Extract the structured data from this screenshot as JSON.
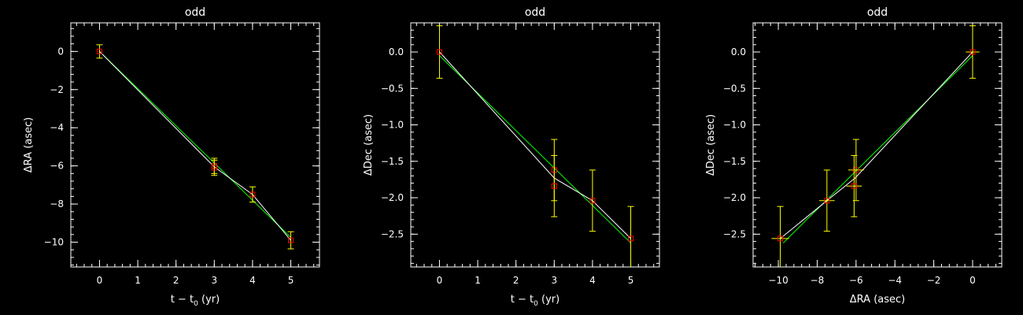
{
  "chart_data": [
    {
      "type": "scatter",
      "title": "odd",
      "xlabel": "t − t",
      "xlabel_sub": "0",
      "xlabel_tail": " (yr)",
      "ylabel": "ΔRA (asec)",
      "xlim": [
        -0.75,
        5.75
      ],
      "ylim": [
        -11.3,
        1.5
      ],
      "xticks": [
        0,
        1,
        2,
        3,
        4,
        5
      ],
      "yticks": [
        0,
        -2,
        -4,
        -6,
        -8,
        -10
      ],
      "ytick_labels": [
        "0",
        "−2",
        "−4",
        "−6",
        "−8",
        "−10"
      ],
      "points": [
        {
          "x": 0,
          "y": 0.0,
          "yerr": 0.35
        },
        {
          "x": 3,
          "y": -6.0,
          "yerr": 0.4
        },
        {
          "x": 3,
          "y": -6.1,
          "yerr": 0.4
        },
        {
          "x": 4,
          "y": -7.5,
          "yerr": 0.4
        },
        {
          "x": 5,
          "y": -9.9,
          "yerr": 0.45
        }
      ],
      "white_line": [
        [
          0,
          0.0
        ],
        [
          3,
          -6.05
        ],
        [
          4,
          -7.5
        ],
        [
          5,
          -9.9
        ]
      ],
      "fit_line": [
        [
          0,
          0.0
        ],
        [
          5,
          -9.75
        ]
      ]
    },
    {
      "type": "scatter",
      "title": "odd",
      "xlabel": "t − t",
      "xlabel_sub": "0",
      "xlabel_tail": " (yr)",
      "ylabel": "ΔDec (asec)",
      "xlim": [
        -0.75,
        5.75
      ],
      "ylim": [
        -2.95,
        0.4
      ],
      "xticks": [
        0,
        1,
        2,
        3,
        4,
        5
      ],
      "yticks": [
        0.0,
        -0.5,
        -1.0,
        -1.5,
        -2.0,
        -2.5
      ],
      "ytick_labels": [
        "0.0",
        "−0.5",
        "−1.0",
        "−1.5",
        "−2.0",
        "−2.5"
      ],
      "points": [
        {
          "x": 0,
          "y": 0.0,
          "yerr": 0.36
        },
        {
          "x": 3,
          "y": -1.62,
          "yerr": 0.42
        },
        {
          "x": 3,
          "y": -1.84,
          "yerr": 0.42
        },
        {
          "x": 4,
          "y": -2.04,
          "yerr": 0.42
        },
        {
          "x": 5,
          "y": -2.56,
          "yerr": 0.44
        }
      ],
      "white_line": [
        [
          0,
          0.0
        ],
        [
          3,
          -1.73
        ],
        [
          4,
          -2.04
        ],
        [
          5,
          -2.56
        ]
      ],
      "fit_line": [
        [
          0,
          -0.05
        ],
        [
          5,
          -2.62
        ]
      ]
    },
    {
      "type": "scatter",
      "title": "odd",
      "xlabel": "ΔRA (asec)",
      "xlabel_sub": "",
      "xlabel_tail": "",
      "ylabel": "ΔDec (asec)",
      "xlim": [
        -11.3,
        1.5
      ],
      "ylim": [
        -2.95,
        0.4
      ],
      "xticks": [
        -10,
        -8,
        -6,
        -4,
        -2,
        0
      ],
      "xtick_labels": [
        "−10",
        "−8",
        "−6",
        "−4",
        "−2",
        "0"
      ],
      "yticks": [
        0.0,
        -0.5,
        -1.0,
        -1.5,
        -2.0,
        -2.5
      ],
      "ytick_labels": [
        "0.0",
        "−0.5",
        "−1.0",
        "−1.5",
        "−2.0",
        "−2.5"
      ],
      "points": [
        {
          "x": 0.0,
          "y": 0.0,
          "xerr": 0.35,
          "yerr": 0.36
        },
        {
          "x": -6.0,
          "y": -1.62,
          "xerr": 0.4,
          "yerr": 0.42
        },
        {
          "x": -6.1,
          "y": -1.84,
          "xerr": 0.4,
          "yerr": 0.42
        },
        {
          "x": -7.5,
          "y": -2.04,
          "xerr": 0.4,
          "yerr": 0.42
        },
        {
          "x": -9.9,
          "y": -2.56,
          "xerr": 0.45,
          "yerr": 0.44
        }
      ],
      "white_line": [
        [
          0.0,
          0.0
        ],
        [
          -6.05,
          -1.73
        ],
        [
          -7.5,
          -2.04
        ],
        [
          -9.9,
          -2.56
        ]
      ],
      "fit_line": [
        [
          0.0,
          -0.05
        ],
        [
          -9.75,
          -2.62
        ]
      ]
    }
  ],
  "colors": {
    "background": "#000000",
    "axes": "#ffffff",
    "markers": "#ff0000",
    "errorbars": "#ffff00",
    "data_line": "#ffffff",
    "fit_line": "#00ff00"
  }
}
